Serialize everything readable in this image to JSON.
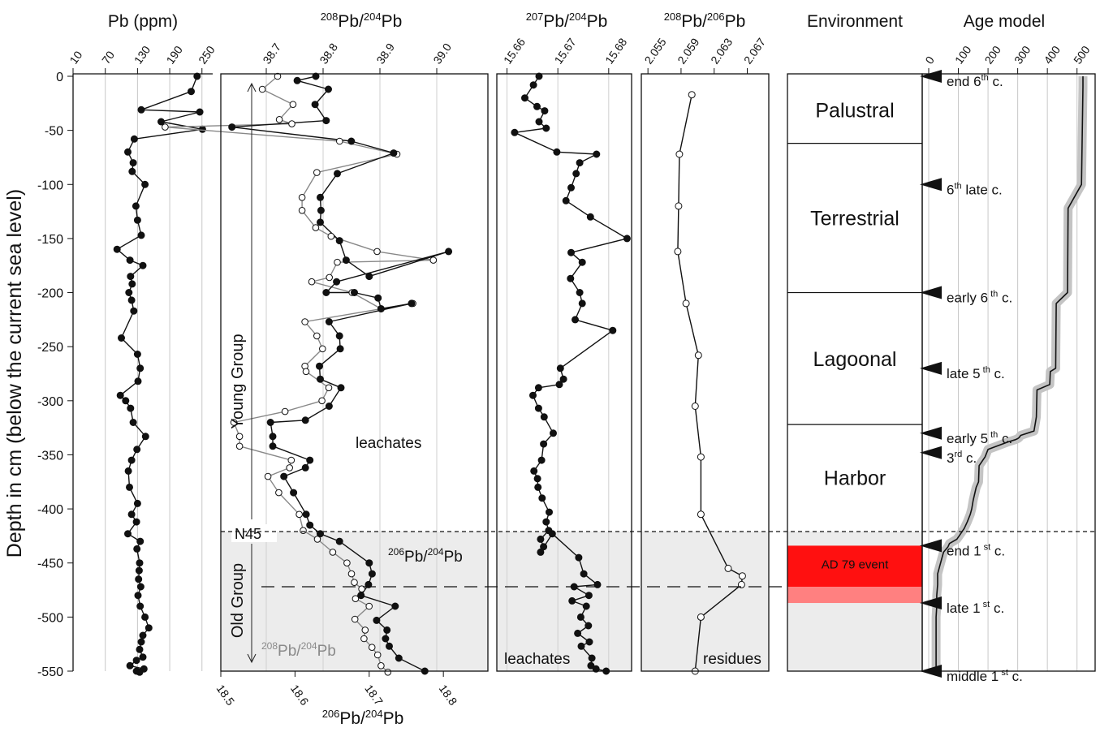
{
  "y_axis": {
    "label": "Depth in cm (below the current sea level)",
    "ticks": [
      0,
      -50,
      -100,
      -150,
      -200,
      -250,
      -300,
      -350,
      -400,
      -450,
      -500,
      -550
    ],
    "tick_labels": [
      "0",
      "-50",
      "-100",
      "-150",
      "-200",
      "-250",
      "-300",
      "-350",
      "-400",
      "-450",
      "-500",
      "-550"
    ],
    "ylim": [
      0,
      -550
    ]
  },
  "panels": {
    "pb": {
      "title": "Pb (ppm)",
      "ticks": [
        10,
        70,
        130,
        190,
        250
      ],
      "tick_labels": [
        "10",
        "70",
        "130",
        "190",
        "250"
      ]
    },
    "pb208_204": {
      "title_mass1": "208",
      "title_el1": "Pb/",
      "title_mass2": "204",
      "title_el2": "Pb",
      "ticks": [
        38.7,
        38.8,
        38.9,
        39.0
      ],
      "tick_labels": [
        "38.7",
        "38.8",
        "38.9",
        "39.0"
      ],
      "bottom_ticks": [
        18.5,
        18.6,
        18.7,
        18.8
      ],
      "bottom_tick_labels": [
        "18.5",
        "18.6",
        "18.7",
        "18.8"
      ],
      "bottom_title_mass1": "206",
      "bottom_title_el1": "Pb/",
      "bottom_title_mass2": "204",
      "bottom_title_el2": "Pb",
      "young_group": "Young Group",
      "old_group": "Old Group",
      "leachates": "leachates",
      "n45": "N45",
      "legend206_mass1": "206",
      "legend206_el1": "Pb/",
      "legend206_mass2": "204",
      "legend206_el2": "Pb",
      "legend208_mass1": "208",
      "legend208_el1": "Pb/",
      "legend208_mass2": "204",
      "legend208_el2": "Pb"
    },
    "pb207_204": {
      "title_mass1": "207",
      "title_el1": "Pb/",
      "title_mass2": "204",
      "title_el2": "Pb",
      "ticks": [
        15.66,
        15.67,
        15.68
      ],
      "tick_labels": [
        "15.66",
        "15.67",
        "15.68"
      ],
      "leachates": "leachates"
    },
    "pb208_206": {
      "title_mass1": "208",
      "title_el1": "Pb/",
      "title_mass2": "206",
      "title_el2": "Pb",
      "ticks": [
        2.055,
        2.059,
        2.063,
        2.067
      ],
      "tick_labels": [
        "2.055",
        "2.059",
        "2.063",
        "2.067"
      ],
      "residues": "residues"
    },
    "environment": {
      "title": "Environment",
      "zones": [
        {
          "name": "Palustral",
          "top": 0,
          "bottom": -62
        },
        {
          "name": "Terrestrial",
          "top": -62,
          "bottom": -200
        },
        {
          "name": "Lagoonal",
          "top": -200,
          "bottom": -322
        },
        {
          "name": "Harbor",
          "top": -322,
          "bottom": -420
        }
      ],
      "event": {
        "label": "AD 79 event",
        "top": -434,
        "bottom": -472,
        "base": -487
      },
      "colors": {
        "event": "#ff1010",
        "event_base": "#ff8080",
        "shade": "#ececec"
      }
    },
    "age_model": {
      "title": "Age model",
      "ticks": [
        0,
        100,
        200,
        300,
        400,
        500
      ],
      "tick_labels": [
        "0",
        "100",
        "200",
        "300",
        "400",
        "500"
      ],
      "markers": [
        {
          "depth": 0,
          "main": "end 6",
          "sup": "th",
          "tail": " c."
        },
        {
          "depth": -100,
          "main": "6",
          "sup": "th",
          "tail": " late c."
        },
        {
          "depth": -200,
          "main": "early 6",
          "sup": " th",
          "tail": " c."
        },
        {
          "depth": -270,
          "main": "late 5",
          "sup": " th",
          "tail": " c."
        },
        {
          "depth": -330,
          "main": "early 5",
          "sup": " th",
          "tail": " c."
        },
        {
          "depth": -348,
          "main": "3",
          "sup": "rd",
          "tail": " c."
        },
        {
          "depth": -434,
          "main": "end 1",
          "sup": " st",
          "tail": " c."
        },
        {
          "depth": -487,
          "main": "late 1",
          "sup": " st",
          "tail": " c."
        },
        {
          "depth": -550,
          "main": "middle 1",
          "sup": " st",
          "tail": " c."
        }
      ]
    }
  },
  "chart_data": [
    {
      "type": "line",
      "title": "Pb (ppm)",
      "ylabel": "Depth in cm (below the current sea level)",
      "xlim": [
        10,
        270
      ],
      "series": [
        {
          "name": "Pb",
          "x": [
            241,
            230,
            137,
            246,
            174,
            251,
            124,
            112,
            122,
            120,
            144,
            127,
            130,
            137,
            92,
            116,
            140,
            117,
            120,
            114,
            119,
            123,
            100,
            130,
            135,
            131,
            98,
            108,
            117,
            122,
            145,
            129,
            119,
            113,
            115,
            130,
            119,
            128,
            112,
            135,
            129,
            134,
            133,
            132,
            136,
            131,
            135,
            144,
            151,
            140,
            137,
            134,
            140,
            128,
            116,
            142,
            128,
            134
          ],
          "y": [
            0,
            -14,
            -31,
            -33,
            -42,
            -49,
            -58,
            -70,
            -80,
            -88,
            -100,
            -120,
            -133,
            -147,
            -160,
            -170,
            -175,
            -185,
            -192,
            -200,
            -207,
            -217,
            -242,
            -257,
            -270,
            -282,
            -295,
            -300,
            -307,
            -320,
            -333,
            -345,
            -355,
            -365,
            -380,
            -395,
            -405,
            -412,
            -423,
            -430,
            -437,
            -450,
            -457,
            -465,
            -472,
            -480,
            -490,
            -500,
            -510,
            -517,
            -523,
            -530,
            -537,
            -540,
            -545,
            -548,
            -550,
            -551
          ]
        }
      ]
    },
    {
      "type": "line",
      "title": "208Pb/204Pb and 206Pb/204Pb",
      "xlim": [
        38.62,
        39.09
      ],
      "x2lim": [
        18.5,
        18.86
      ],
      "series": [
        {
          "name": "206Pb/204Pb",
          "axis": "bottom",
          "x": [
            18.628,
            18.603,
            18.645,
            18.627,
            18.642,
            18.515,
            18.676,
            18.733,
            18.657,
            18.634,
            18.635,
            18.634,
            18.66,
            18.669,
            18.7,
            18.807,
            18.656,
            18.642,
            18.68,
            18.712,
            18.716,
            18.757,
            18.646,
            18.66,
            18.661,
            18.633,
            18.634,
            18.662,
            18.646,
            18.614,
            18.567,
            18.57,
            18.57,
            18.62,
            18.614,
            18.585,
            18.598,
            18.615,
            18.62,
            18.634,
            18.66,
            18.7,
            18.704,
            18.699,
            18.689,
            18.735,
            18.71,
            18.724,
            18.722,
            18.727,
            18.74,
            18.775
          ],
          "y": [
            0,
            -4,
            -12,
            -26,
            -41,
            -47,
            -60,
            -71,
            -90,
            -112,
            -124,
            -135,
            -152,
            -170,
            -185,
            -162,
            -190,
            -200,
            -200,
            -205,
            -215,
            -210,
            -227,
            -240,
            -252,
            -268,
            -280,
            -288,
            -305,
            -318,
            -320,
            -333,
            -342,
            -355,
            -362,
            -370,
            -385,
            -405,
            -415,
            -423,
            -430,
            -450,
            -460,
            -470,
            -480,
            -490,
            -503,
            -512,
            -520,
            -527,
            -538,
            -550
          ]
        },
        {
          "name": "208Pb/204Pb",
          "axis": "top",
          "x": [
            38.72,
            38.693,
            38.747,
            38.723,
            38.745,
            38.522,
            38.829,
            38.93,
            38.789,
            38.763,
            38.763,
            38.787,
            38.814,
            38.895,
            38.994,
            38.825,
            38.811,
            38.78,
            38.851,
            38.902,
            38.958,
            38.768,
            38.789,
            38.799,
            38.768,
            38.77,
            38.81,
            38.798,
            38.733,
            38.643,
            38.653,
            38.653,
            38.744,
            38.741,
            38.703,
            38.722,
            38.758,
            38.765,
            38.79,
            38.817,
            38.842,
            38.85,
            38.855,
            38.868,
            38.857,
            38.881,
            38.856,
            38.874,
            38.872,
            38.886,
            38.896,
            38.902,
            38.914
          ],
          "y": [
            0,
            -12,
            -26,
            -40,
            -44,
            -47,
            -60,
            -72,
            -89,
            -112,
            -124,
            -140,
            -148,
            -162,
            -170,
            -172,
            -186,
            -190,
            -200,
            -215,
            -210,
            -227,
            -240,
            -252,
            -268,
            -273,
            -288,
            -300,
            -310,
            -320,
            -333,
            -342,
            -355,
            -362,
            -370,
            -385,
            -405,
            -420,
            -428,
            -440,
            -450,
            -460,
            -468,
            -474,
            -483,
            -490,
            -502,
            -512,
            -520,
            -528,
            -535,
            -545,
            -551
          ]
        }
      ]
    },
    {
      "type": "line",
      "title": "207Pb/204Pb",
      "xlim": [
        15.658,
        15.6845
      ],
      "series": [
        {
          "name": "207Pb/204Pb",
          "x": [
            15.6663,
            15.6652,
            15.6635,
            15.6659,
            15.6674,
            15.6663,
            15.6677,
            15.6615,
            15.6698,
            15.6776,
            15.6743,
            15.6736,
            15.6726,
            15.6716,
            15.6764,
            15.6836,
            15.6726,
            15.6748,
            15.6725,
            15.6743,
            15.6748,
            15.6734,
            15.6808,
            15.6705,
            15.6711,
            15.6703,
            15.6662,
            15.6651,
            15.6662,
            15.6673,
            15.6691,
            15.6672,
            15.6668,
            15.6653,
            15.666,
            15.6661,
            15.6669,
            15.6683,
            15.6677,
            15.6682,
            15.6666,
            15.6672,
            15.6666,
            15.6689,
            15.6741,
            15.6751,
            15.6778,
            15.6732,
            15.6761,
            15.6728,
            15.6756,
            15.6745,
            15.676,
            15.6739,
            15.6762,
            15.6746,
            15.6767,
            15.6765,
            15.6775,
            15.6795
          ],
          "y": [
            0,
            -8,
            -20,
            -28,
            -32,
            -42,
            -48,
            -52,
            -70,
            -72,
            -80,
            -90,
            -103,
            -115,
            -130,
            -150,
            -163,
            -172,
            -187,
            -200,
            -210,
            -225,
            -235,
            -270,
            -280,
            -285,
            -288,
            -295,
            -307,
            -315,
            -330,
            -340,
            -355,
            -365,
            -372,
            -380,
            -390,
            -403,
            -412,
            -420,
            -428,
            -435,
            -440,
            -423,
            -445,
            -460,
            -470,
            -472,
            -480,
            -485,
            -490,
            -500,
            -508,
            -515,
            -523,
            -527,
            -538,
            -545,
            -548,
            -550
          ]
        }
      ]
    },
    {
      "type": "line",
      "title": "208Pb/206Pb",
      "xlim": [
        2.0542,
        2.0696
      ],
      "series": [
        {
          "name": "208Pb/206Pb",
          "x": [
            2.0603,
            2.0588,
            2.0587,
            2.0586,
            2.0596,
            2.0611,
            2.0607,
            2.0614,
            2.0614,
            2.0647,
            2.0664,
            2.0663,
            2.0614,
            2.0607
          ],
          "y": [
            -17,
            -72,
            -120,
            -162,
            -210,
            -258,
            -305,
            -352,
            -405,
            -455,
            -462,
            -470,
            -500,
            -550
          ]
        }
      ]
    },
    {
      "type": "line",
      "title": "Age model",
      "xlim": [
        0,
        560
      ],
      "series": [
        {
          "name": "Age model",
          "x": [
            520,
            520,
            515,
            470,
            468,
            430,
            428,
            410,
            408,
            365,
            363,
            360,
            355,
            310,
            305,
            300,
            292,
            268,
            200,
            190,
            170,
            168,
            160,
            150,
            145,
            140,
            130,
            120,
            115,
            110,
            95,
            70,
            65,
            50,
            45,
            35,
            30,
            30,
            27,
            27,
            25,
            25
          ],
          "y": [
            0,
            -10,
            -100,
            -122,
            -200,
            -210,
            -270,
            -273,
            -285,
            -290,
            -315,
            -320,
            -328,
            -332,
            -334,
            -335,
            -336,
            -338,
            -345,
            -352,
            -360,
            -375,
            -380,
            -392,
            -400,
            -405,
            -412,
            -418,
            -420,
            -422,
            -428,
            -432,
            -435,
            -440,
            -445,
            -455,
            -460,
            -470,
            -480,
            -490,
            -500,
            -550
          ]
        }
      ]
    }
  ]
}
